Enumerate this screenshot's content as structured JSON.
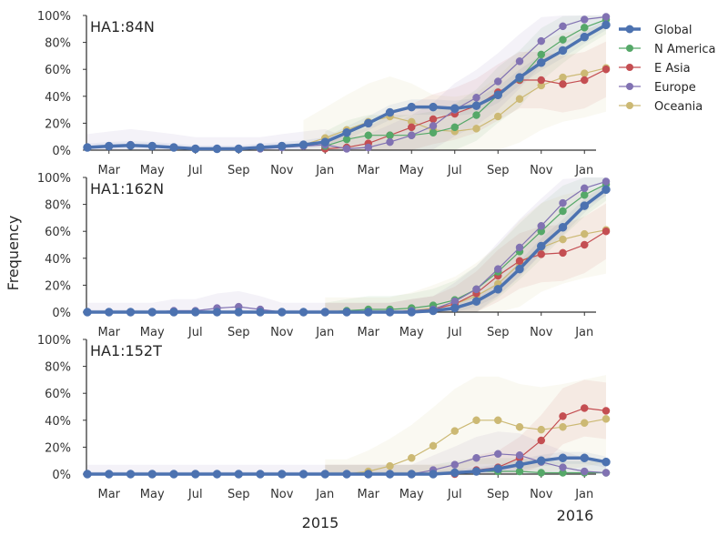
{
  "chart_data": {
    "type": "line",
    "ylabel": "Frequency",
    "xticks": [
      "Mar",
      "May",
      "Jul",
      "Sep",
      "Nov",
      "Jan",
      "Mar",
      "May",
      "Jul",
      "Sep",
      "Nov",
      "Jan"
    ],
    "year_labels": [
      "2015",
      "2016"
    ],
    "yticks": [
      "0%",
      "20%",
      "40%",
      "60%",
      "80%",
      "100%"
    ],
    "ylim": [
      0,
      1
    ],
    "legend": {
      "position": "right",
      "entries": [
        "Global",
        "N America",
        "E Asia",
        "Europe",
        "Oceania"
      ]
    },
    "colors": {
      "Global": "#4c72b0",
      "N America": "#55a868",
      "E Asia": "#c44e52",
      "Europe": "#8172b2",
      "Oceania": "#ccb974"
    },
    "x_months": [
      "2014-02",
      "2014-03",
      "2014-04",
      "2014-05",
      "2014-06",
      "2014-07",
      "2014-08",
      "2014-09",
      "2014-10",
      "2014-11",
      "2014-12",
      "2015-01",
      "2015-02",
      "2015-03",
      "2015-04",
      "2015-05",
      "2015-06",
      "2015-07",
      "2015-08",
      "2015-09",
      "2015-10",
      "2015-11",
      "2015-12",
      "2016-01",
      "2016-02"
    ],
    "panels": [
      {
        "title": "HA1:84N",
        "series": [
          {
            "name": "Global",
            "values": [
              0.02,
              0.03,
              0.035,
              0.03,
              0.02,
              0.01,
              0.01,
              0.01,
              0.02,
              0.03,
              0.04,
              0.06,
              0.13,
              0.2,
              0.28,
              0.32,
              0.32,
              0.31,
              0.33,
              0.41,
              0.54,
              0.65,
              0.74,
              0.84,
              0.93
            ]
          },
          {
            "name": "N America",
            "values": [
              null,
              null,
              null,
              null,
              null,
              null,
              null,
              null,
              null,
              null,
              null,
              0.03,
              0.08,
              0.11,
              0.11,
              0.11,
              0.13,
              0.17,
              0.26,
              0.41,
              0.53,
              0.71,
              0.82,
              0.91,
              0.97
            ]
          },
          {
            "name": "E Asia",
            "values": [
              null,
              null,
              null,
              null,
              null,
              null,
              null,
              null,
              null,
              null,
              null,
              0.01,
              0.02,
              0.05,
              0.11,
              0.17,
              0.23,
              0.27,
              0.33,
              0.43,
              0.52,
              0.52,
              0.49,
              0.52,
              0.6
            ]
          },
          {
            "name": "Europe",
            "values": [
              0.02,
              0.03,
              0.04,
              0.03,
              0.02,
              0.01,
              0.01,
              0.01,
              0.01,
              0.02,
              0.03,
              0.04,
              0.01,
              0.02,
              0.06,
              0.11,
              0.18,
              0.3,
              0.39,
              0.51,
              0.66,
              0.81,
              0.92,
              0.97,
              0.99
            ]
          },
          {
            "name": "Oceania",
            "values": [
              null,
              null,
              null,
              null,
              null,
              null,
              null,
              null,
              null,
              null,
              0.04,
              0.09,
              0.15,
              0.21,
              0.25,
              0.21,
              0.15,
              0.14,
              0.16,
              0.25,
              0.38,
              0.48,
              0.54,
              0.57,
              0.61
            ]
          }
        ]
      },
      {
        "title": "HA1:162N",
        "series": [
          {
            "name": "Global",
            "values": [
              0,
              0,
              0,
              0,
              0,
              0,
              0,
              0,
              0,
              0,
              0,
              0,
              0,
              0,
              0,
              0,
              0.01,
              0.03,
              0.08,
              0.17,
              0.32,
              0.49,
              0.63,
              0.79,
              0.91
            ]
          },
          {
            "name": "N America",
            "values": [
              null,
              null,
              null,
              null,
              null,
              null,
              null,
              null,
              null,
              null,
              null,
              0,
              0.01,
              0.02,
              0.02,
              0.03,
              0.05,
              0.09,
              0.17,
              0.3,
              0.45,
              0.6,
              0.75,
              0.87,
              0.95
            ]
          },
          {
            "name": "E Asia",
            "values": [
              null,
              null,
              null,
              null,
              null,
              null,
              null,
              null,
              null,
              null,
              null,
              0,
              0,
              0,
              0,
              0.01,
              0.02,
              0.06,
              0.14,
              0.27,
              0.38,
              0.43,
              0.44,
              0.5,
              0.6
            ]
          },
          {
            "name": "Europe",
            "values": [
              0,
              0,
              0,
              0,
              0.01,
              0.01,
              0.03,
              0.04,
              0.02,
              0,
              0,
              0,
              0,
              0,
              0,
              0.01,
              0.02,
              0.08,
              0.17,
              0.32,
              0.48,
              0.64,
              0.81,
              0.92,
              0.97
            ]
          },
          {
            "name": "Oceania",
            "values": [
              null,
              null,
              null,
              null,
              null,
              null,
              null,
              null,
              null,
              null,
              null,
              0,
              0,
              0,
              0,
              0.01,
              0.03,
              0.06,
              0.12,
              0.21,
              0.36,
              0.48,
              0.54,
              0.58,
              0.61
            ]
          }
        ]
      },
      {
        "title": "HA1:152T",
        "series": [
          {
            "name": "Global",
            "values": [
              0,
              0,
              0,
              0,
              0,
              0,
              0,
              0,
              0,
              0,
              0,
              0,
              0,
              0,
              0,
              0,
              0,
              0.01,
              0.02,
              0.04,
              0.07,
              0.1,
              0.12,
              0.12,
              0.09
            ]
          },
          {
            "name": "N America",
            "values": [
              null,
              null,
              null,
              null,
              null,
              null,
              null,
              null,
              null,
              null,
              null,
              0,
              0,
              0,
              0,
              0,
              0,
              0.01,
              0.02,
              0.02,
              0.02,
              0.01,
              0.01,
              0.01,
              0.01
            ]
          },
          {
            "name": "E Asia",
            "values": [
              null,
              null,
              null,
              null,
              null,
              null,
              null,
              null,
              null,
              null,
              null,
              0,
              0,
              0,
              0,
              0,
              0,
              0,
              0.03,
              0.05,
              0.12,
              0.25,
              0.43,
              0.49,
              0.47
            ]
          },
          {
            "name": "Europe",
            "values": [
              0,
              0,
              0,
              0,
              0,
              0,
              0,
              0,
              0,
              0,
              0,
              0,
              0,
              0,
              0,
              0,
              0.03,
              0.07,
              0.12,
              0.15,
              0.14,
              0.09,
              0.05,
              0.02,
              0.01
            ]
          },
          {
            "name": "Oceania",
            "values": [
              null,
              null,
              null,
              null,
              null,
              null,
              null,
              null,
              null,
              null,
              null,
              0,
              0,
              0.02,
              0.06,
              0.12,
              0.21,
              0.32,
              0.4,
              0.4,
              0.35,
              0.33,
              0.35,
              0.38,
              0.41
            ]
          }
        ]
      }
    ]
  }
}
